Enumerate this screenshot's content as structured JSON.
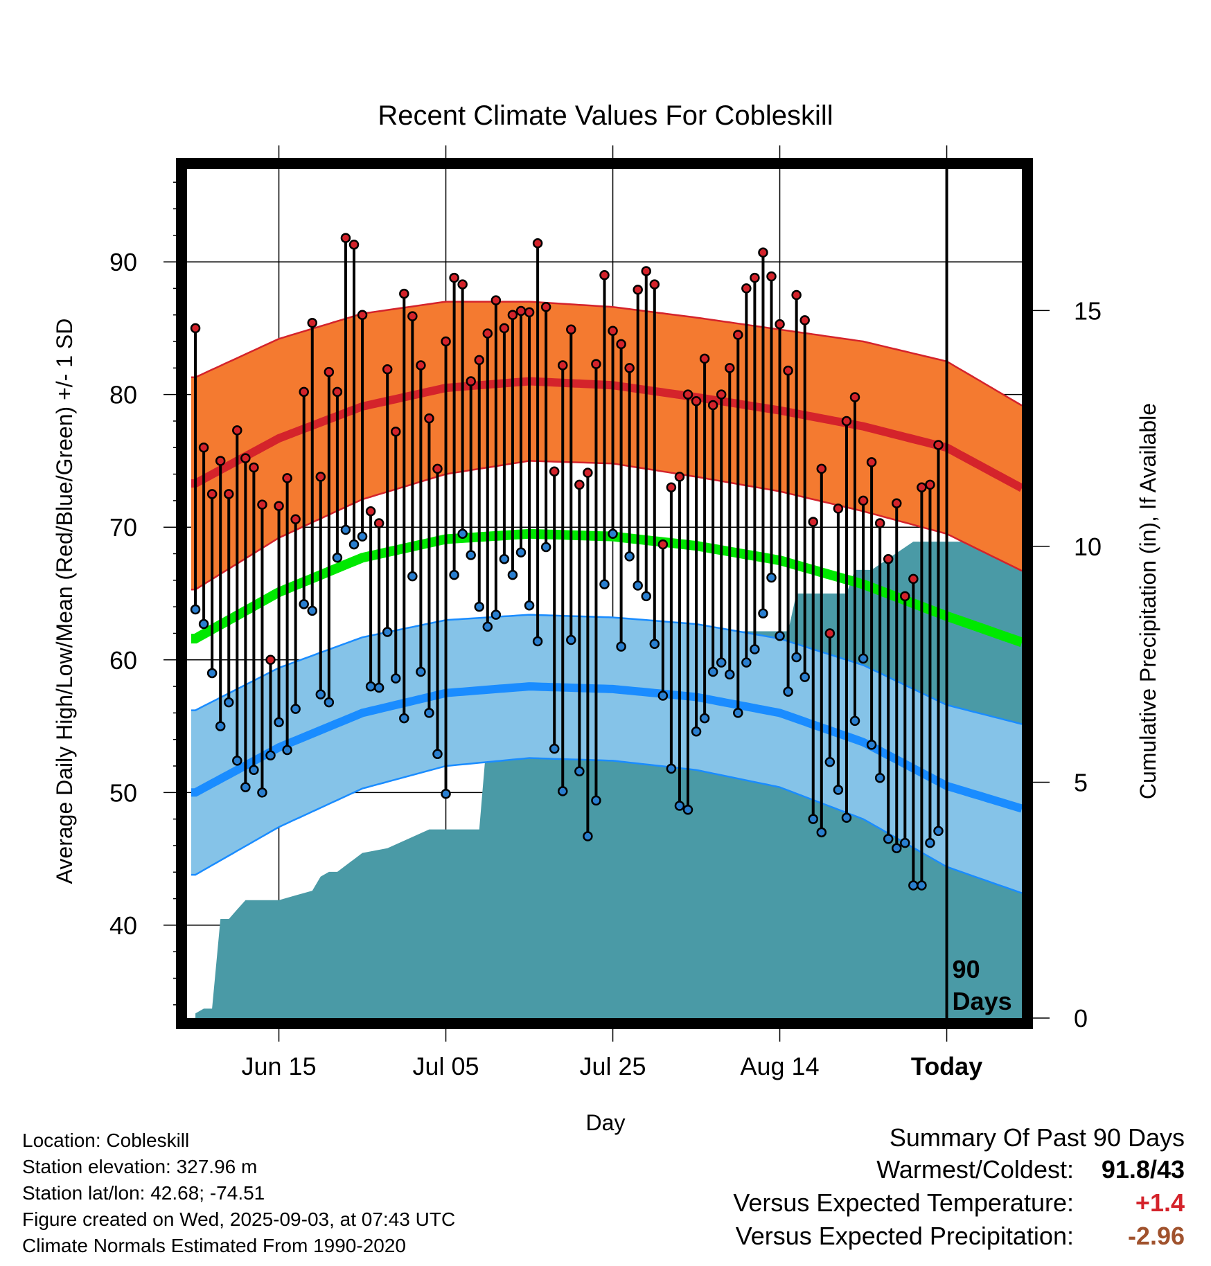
{
  "chart_data": {
    "type": "line",
    "title": "Recent Climate Values For Cobleskill",
    "xlabel": "Day",
    "ylabel": "Average Daily High/Low/Mean (Red/Blue/Green) +/- 1 SD",
    "y2label": "Cumulative Precipitation (in), If Available",
    "ylim": [
      33,
      97
    ],
    "y2lim": [
      0,
      18
    ],
    "x_days_range": [
      -91,
      9
    ],
    "x_tick_days": [
      -80,
      -60,
      -40,
      -20,
      0
    ],
    "x_tick_labels": [
      "Jun 15",
      "Jul 05",
      "Jul 25",
      "Aug 14",
      "Today"
    ],
    "y_ticks": [
      40,
      50,
      60,
      70,
      80,
      90
    ],
    "y2_ticks": [
      0,
      5,
      10,
      15
    ],
    "today_label": "90\nDays",
    "grid": true,
    "colors": {
      "high_band": "#f47a30",
      "high_line": "#d4232b",
      "mean_line": "#00e800",
      "low_band": "#85c3e8",
      "low_line": "#1a8cff",
      "precip": "#4a9aa6",
      "high_marker": "#d4232b",
      "low_marker": "#2a7fd0"
    },
    "normals": {
      "days": [
        -90,
        -80,
        -70,
        -60,
        -50,
        -40,
        -30,
        -20,
        -10,
        0,
        10
      ],
      "high": [
        73.3,
        76.7,
        79.1,
        80.5,
        81.0,
        80.7,
        79.8,
        78.8,
        77.6,
        76.0,
        72.6
      ],
      "high_sd": [
        8.0,
        7.5,
        7.0,
        6.5,
        6.0,
        5.9,
        6.0,
        6.1,
        6.4,
        6.5,
        6.2
      ],
      "low": [
        50.0,
        53.4,
        56.0,
        57.5,
        58.0,
        57.8,
        57.2,
        56.0,
        53.8,
        50.5,
        48.6
      ],
      "low_sd": [
        6.2,
        6.0,
        5.7,
        5.5,
        5.4,
        5.4,
        5.5,
        5.6,
        5.8,
        6.1,
        6.4
      ],
      "mean": [
        61.6,
        65.1,
        67.7,
        69.1,
        69.5,
        69.3,
        68.6,
        67.5,
        65.7,
        63.3,
        61.1
      ]
    },
    "daily": {
      "start_day": -90,
      "high": [
        85.0,
        76.0,
        72.5,
        75.0,
        72.5,
        77.3,
        75.2,
        74.5,
        71.7,
        60.0,
        71.6,
        73.7,
        70.6,
        80.2,
        85.4,
        73.8,
        81.7,
        80.2,
        91.8,
        91.3,
        86.0,
        71.2,
        70.3,
        81.9,
        77.2,
        87.6,
        85.9,
        82.2,
        78.2,
        74.4,
        84.0,
        88.8,
        88.3,
        81.0,
        82.6,
        84.6,
        87.1,
        85.0,
        86.0,
        86.3,
        86.2,
        91.4,
        86.6,
        74.2,
        82.2,
        84.9,
        73.2,
        74.1,
        82.3,
        89.0,
        84.8,
        83.8,
        82.0,
        87.9,
        89.3,
        88.3,
        68.7,
        73.0,
        73.8,
        80.0,
        79.5,
        82.7,
        79.2,
        80.0,
        82.0,
        84.5,
        88.0,
        88.8,
        90.7,
        88.9,
        85.3,
        81.8,
        87.5,
        85.6,
        70.4,
        74.4,
        62.0,
        71.4,
        78.0,
        79.8,
        72.0,
        74.9,
        70.3,
        67.6,
        71.8,
        64.8,
        66.1,
        73.0,
        73.2,
        76.2
      ],
      "low": [
        63.8,
        62.7,
        59.0,
        55.0,
        56.8,
        52.4,
        50.4,
        51.7,
        50.0,
        52.8,
        55.3,
        53.2,
        56.3,
        64.2,
        63.7,
        57.4,
        56.8,
        67.7,
        69.8,
        68.7,
        69.3,
        58.0,
        57.9,
        62.1,
        58.6,
        55.6,
        66.3,
        59.1,
        56.0,
        52.9,
        49.9,
        66.4,
        69.5,
        67.9,
        64.0,
        62.5,
        63.4,
        67.6,
        66.4,
        68.1,
        64.1,
        61.4,
        68.5,
        53.3,
        50.1,
        61.5,
        51.6,
        46.7,
        49.4,
        65.7,
        69.5,
        61.0,
        67.8,
        65.6,
        64.8,
        61.2,
        57.3,
        51.8,
        49.0,
        48.7,
        54.6,
        55.6,
        59.1,
        59.8,
        58.9,
        56.0,
        59.8,
        60.8,
        63.5,
        66.2,
        61.8,
        57.6,
        60.2,
        58.7,
        48.0,
        47.0,
        52.3,
        50.2,
        48.1,
        55.4,
        60.1,
        53.6,
        51.1,
        46.5,
        45.8,
        46.2,
        43.0,
        43.0,
        46.2,
        47.1
      ]
    },
    "precip": {
      "days": [
        -90,
        -89,
        -88,
        -87,
        -86,
        -85,
        -84,
        -83,
        -82,
        -81,
        -80,
        -78,
        -76,
        -75,
        -74,
        -73,
        -70,
        -67,
        -62,
        -56,
        -55,
        -54,
        -45,
        -38,
        -37,
        -36,
        -27,
        -26,
        -19,
        -18,
        -12,
        -11,
        -9,
        -4,
        -3,
        9
      ],
      "value": [
        0.1,
        0.2,
        0.2,
        2.1,
        2.1,
        2.3,
        2.5,
        2.5,
        2.5,
        2.5,
        2.5,
        2.6,
        2.7,
        3.0,
        3.1,
        3.1,
        3.5,
        3.6,
        4.0,
        4.0,
        6.1,
        6.3,
        6.3,
        6.3,
        7.4,
        7.4,
        8.2,
        8.2,
        8.2,
        9.0,
        9.0,
        9.5,
        9.5,
        10.1,
        10.1,
        10.1
      ]
    }
  },
  "info": {
    "location": "Location: Cobleskill",
    "elevation": "Station elevation: 327.96 m",
    "latlon": "Station lat/lon: 42.68; -74.51",
    "created": "Figure created on Wed, 2025-09-03, at 07:43 UTC",
    "normals": "Climate Normals Estimated From 1990-2020"
  },
  "summary": {
    "heading": "Summary Of Past 90 Days",
    "warmest_label": "Warmest/Coldest:",
    "warmest_value": "91.8/43",
    "temp_label": "Versus Expected Temperature:",
    "temp_value": "+1.4",
    "temp_color": "#d4232b",
    "precip_label": "Versus Expected Precipitation:",
    "precip_value": "-2.96",
    "precip_color": "#a0522d"
  }
}
